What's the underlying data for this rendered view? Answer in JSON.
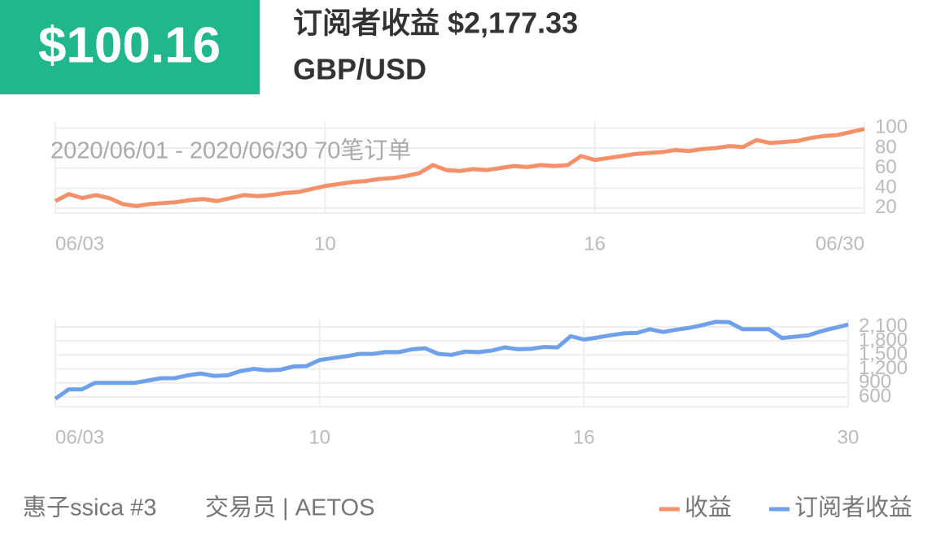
{
  "header": {
    "amount": "$100.16",
    "title": "订阅者收益 $2,177.33",
    "pair": "GBP/USD"
  },
  "footer": {
    "name": "惠子ssica #3",
    "role": "交易员 | AETOS"
  },
  "chart_data": [
    {
      "type": "line",
      "annotation": "2020/06/01 - 2020/06/30  70笔订单",
      "categories": [
        "06/03",
        null,
        null,
        null,
        null,
        null,
        null,
        null,
        null,
        null,
        null,
        null,
        null,
        null,
        null,
        null,
        null,
        null,
        null,
        null,
        "10",
        null,
        null,
        null,
        null,
        null,
        null,
        null,
        null,
        null,
        null,
        null,
        null,
        null,
        null,
        null,
        null,
        null,
        null,
        null,
        "16",
        null,
        null,
        null,
        null,
        null,
        null,
        null,
        null,
        null,
        null,
        null,
        null,
        null,
        null,
        null,
        null,
        null,
        null,
        null,
        "06/30"
      ],
      "series": [
        {
          "name": "收益",
          "color": "#f4916b",
          "values": [
            27,
            34,
            30,
            33,
            30,
            24,
            22,
            24,
            25,
            26,
            28,
            29,
            27,
            30,
            33,
            32,
            33,
            35,
            36,
            39,
            42,
            44,
            46,
            47,
            49,
            50,
            52,
            55,
            63,
            58,
            57,
            59,
            58,
            60,
            62,
            61,
            63,
            62,
            63,
            72,
            68,
            70,
            72,
            74,
            75,
            76,
            78,
            77,
            79,
            80,
            82,
            81,
            88,
            85,
            86,
            87,
            90,
            92,
            93,
            96,
            99
          ]
        }
      ],
      "ylim": [
        15,
        106
      ],
      "yticks": [
        20,
        40,
        60,
        80,
        100
      ],
      "grid": true
    },
    {
      "type": "line",
      "categories": [
        "06/03",
        null,
        null,
        null,
        null,
        null,
        null,
        null,
        null,
        null,
        null,
        null,
        null,
        null,
        null,
        null,
        null,
        null,
        null,
        null,
        "10",
        null,
        null,
        null,
        null,
        null,
        null,
        null,
        null,
        null,
        null,
        null,
        null,
        null,
        null,
        null,
        null,
        null,
        null,
        null,
        "16",
        null,
        null,
        null,
        null,
        null,
        null,
        null,
        null,
        null,
        null,
        null,
        null,
        null,
        null,
        null,
        null,
        null,
        null,
        null,
        "30"
      ],
      "series": [
        {
          "name": "订阅者收益",
          "color": "#6fa0ea",
          "values": [
            560,
            760,
            760,
            900,
            900,
            900,
            900,
            950,
            1000,
            1000,
            1060,
            1100,
            1050,
            1060,
            1150,
            1200,
            1170,
            1180,
            1250,
            1260,
            1390,
            1430,
            1470,
            1520,
            1520,
            1560,
            1560,
            1620,
            1640,
            1520,
            1500,
            1570,
            1560,
            1590,
            1660,
            1620,
            1630,
            1670,
            1660,
            1900,
            1830,
            1870,
            1920,
            1960,
            1970,
            2050,
            1990,
            2040,
            2080,
            2140,
            2210,
            2200,
            2050,
            2050,
            2050,
            1860,
            1890,
            1920,
            2010,
            2080,
            2150
          ]
        }
      ],
      "ylim": [
        390,
        2255
      ],
      "yticks": [
        {
          "value": 2100,
          "label": "2,100"
        },
        {
          "value": 1800,
          "label": "1,800"
        },
        {
          "value": 1500,
          "label": "1,500"
        },
        {
          "value": 1200,
          "label": "1,200"
        },
        900,
        600
      ],
      "grid": true
    }
  ]
}
